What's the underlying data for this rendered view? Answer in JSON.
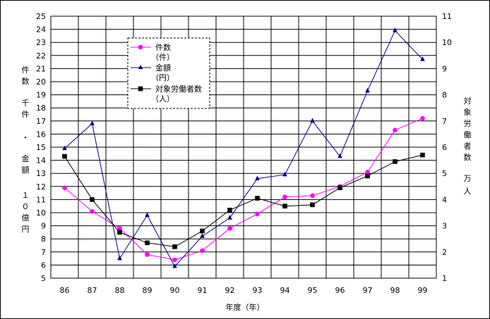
{
  "chart_data": {
    "type": "line",
    "categories": [
      "86",
      "87",
      "88",
      "89",
      "90",
      "91",
      "92",
      "93",
      "94",
      "95",
      "96",
      "97",
      "98",
      "99"
    ],
    "series": [
      {
        "name": "件数\n（件）",
        "axis": "left",
        "color": "#ff00ff",
        "marker": "circle",
        "values": [
          11.9,
          10.1,
          8.8,
          6.8,
          6.4,
          7.1,
          8.8,
          9.9,
          11.2,
          11.3,
          12.0,
          13.1,
          16.3,
          17.2
        ]
      },
      {
        "name": "金額\n（円）",
        "axis": "left",
        "color": "#000080",
        "marker": "triangle",
        "values": [
          14.9,
          16.8,
          6.5,
          9.8,
          5.9,
          8.2,
          9.6,
          12.6,
          12.9,
          17.0,
          14.3,
          19.3,
          23.9,
          21.7
        ]
      },
      {
        "name": "対象労働者数\n（人）",
        "axis": "right",
        "color": "#000000",
        "marker": "square",
        "values": [
          5.65,
          4.0,
          2.75,
          2.35,
          2.2,
          2.8,
          3.6,
          4.05,
          3.75,
          3.8,
          4.45,
          4.9,
          5.45,
          5.7
        ]
      }
    ],
    "y_left": {
      "min": 5,
      "max": 25,
      "ticks": [
        "5",
        "6",
        "7",
        "8",
        "9",
        "10",
        "11",
        "12",
        "13",
        "14",
        "15",
        "16",
        "17",
        "18",
        "19",
        "20",
        "21",
        "22",
        "23",
        "24",
        "25"
      ]
    },
    "y_right": {
      "min": 1,
      "max": 11,
      "ticks": [
        "1",
        "2",
        "3",
        "4",
        "5",
        "6",
        "7",
        "8",
        "9",
        "10",
        "11"
      ]
    },
    "ylabel_left": {
      "line1": "件数",
      "line2": "千件",
      "dot": "・",
      "line3": "金額",
      "line4": "１０億円"
    },
    "ylabel_right": {
      "text1": "対象労働者数",
      "text2": "万人"
    },
    "xlabel": "年度（年）",
    "grid": true,
    "legend": "top-left-center"
  }
}
